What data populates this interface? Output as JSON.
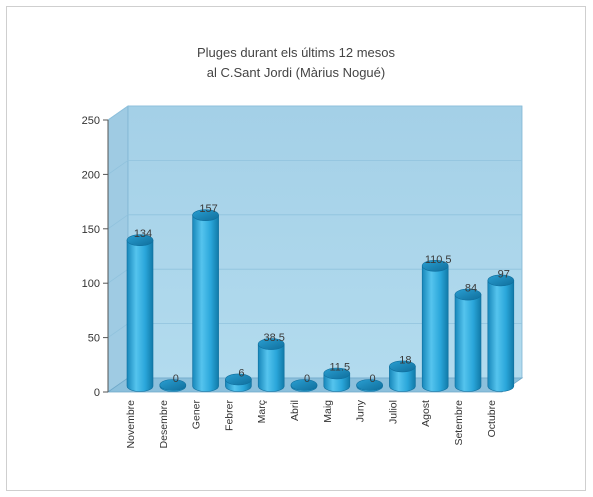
{
  "chart_data": {
    "type": "bar",
    "title": "Pluges durant els últims 12 mesos",
    "subtitle": "al C.Sant Jordi (Màrius Nogué)",
    "xlabel": "",
    "ylabel": "",
    "ylim": [
      0,
      250
    ],
    "yticks": [
      "0",
      "50",
      "100",
      "150",
      "200",
      "250"
    ],
    "categories": [
      "Novembre",
      "Desembre",
      "Gener",
      "Febrer",
      "Març",
      "Abril",
      "Maig",
      "Juny",
      "Juliol",
      "Agost",
      "Setembre",
      "Octubre"
    ],
    "values": [
      134,
      0,
      157,
      6,
      38.5,
      0,
      11.5,
      0,
      18,
      110.5,
      84,
      97
    ],
    "value_labels": [
      "134",
      "0",
      "157",
      "6",
      "38.5",
      "0",
      "11.5",
      "0",
      "18",
      "110.5",
      "84",
      "97"
    ],
    "grid": true,
    "colors": {
      "bar": "#29a8dc",
      "bar_dark": "#137fae",
      "wall": "#a9d4e9",
      "floor": "#8fc3de"
    }
  }
}
